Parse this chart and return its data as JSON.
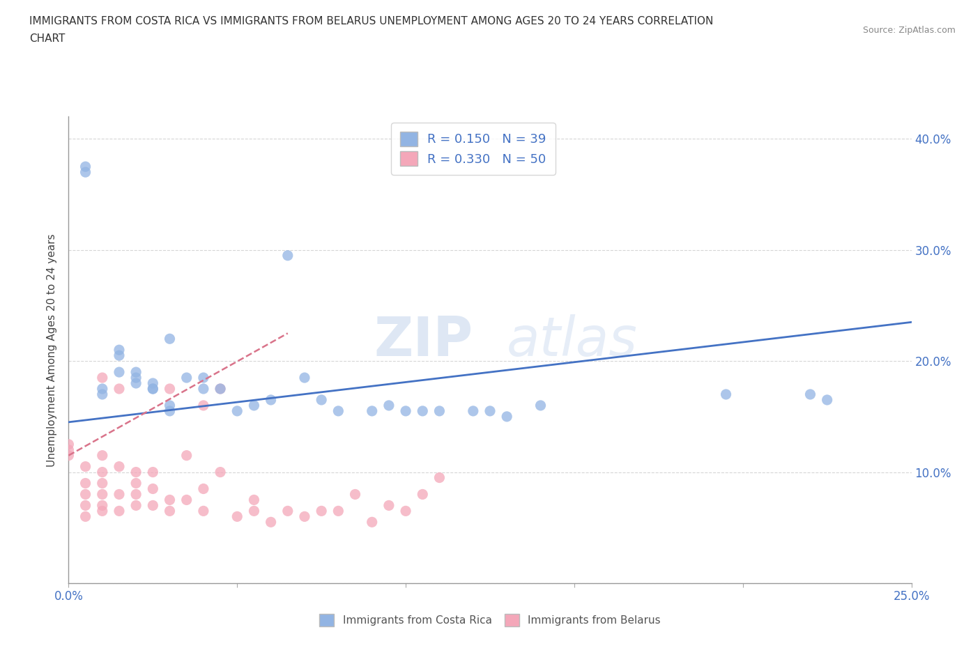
{
  "title_line1": "IMMIGRANTS FROM COSTA RICA VS IMMIGRANTS FROM BELARUS UNEMPLOYMENT AMONG AGES 20 TO 24 YEARS CORRELATION",
  "title_line2": "CHART",
  "source_text": "Source: ZipAtlas.com",
  "ylabel": "Unemployment Among Ages 20 to 24 years",
  "xlim": [
    0.0,
    0.25
  ],
  "ylim": [
    0.0,
    0.42
  ],
  "xticks": [
    0.0,
    0.05,
    0.1,
    0.15,
    0.2,
    0.25
  ],
  "yticks": [
    0.0,
    0.1,
    0.2,
    0.3,
    0.4
  ],
  "xticklabels": [
    "0.0%",
    "",
    "",
    "",
    "",
    "25.0%"
  ],
  "yticklabels": [
    "",
    "10.0%",
    "20.0%",
    "30.0%",
    "40.0%"
  ],
  "costa_rica_color": "#92b4e3",
  "belarus_color": "#f4a7b9",
  "costa_rica_line_color": "#4472c4",
  "belarus_line_color": "#d9738a",
  "legend_costa_rica": "R = 0.150   N = 39",
  "legend_belarus": "R = 0.330   N = 50",
  "watermark": "ZIPatlas",
  "costa_rica_scatter_x": [
    0.005,
    0.005,
    0.01,
    0.01,
    0.015,
    0.015,
    0.015,
    0.02,
    0.02,
    0.02,
    0.025,
    0.025,
    0.025,
    0.03,
    0.03,
    0.03,
    0.035,
    0.04,
    0.04,
    0.045,
    0.05,
    0.055,
    0.06,
    0.065,
    0.07,
    0.075,
    0.08,
    0.09,
    0.095,
    0.1,
    0.105,
    0.11,
    0.12,
    0.125,
    0.13,
    0.14,
    0.195,
    0.22,
    0.225
  ],
  "costa_rica_scatter_y": [
    0.37,
    0.375,
    0.17,
    0.175,
    0.19,
    0.205,
    0.21,
    0.18,
    0.185,
    0.19,
    0.175,
    0.175,
    0.18,
    0.155,
    0.16,
    0.22,
    0.185,
    0.175,
    0.185,
    0.175,
    0.155,
    0.16,
    0.165,
    0.295,
    0.185,
    0.165,
    0.155,
    0.155,
    0.16,
    0.155,
    0.155,
    0.155,
    0.155,
    0.155,
    0.15,
    0.16,
    0.17,
    0.17,
    0.165
  ],
  "belarus_scatter_x": [
    0.0,
    0.0,
    0.0,
    0.005,
    0.005,
    0.005,
    0.005,
    0.005,
    0.01,
    0.01,
    0.01,
    0.01,
    0.01,
    0.01,
    0.01,
    0.015,
    0.015,
    0.015,
    0.015,
    0.02,
    0.02,
    0.02,
    0.02,
    0.025,
    0.025,
    0.025,
    0.03,
    0.03,
    0.03,
    0.035,
    0.035,
    0.04,
    0.04,
    0.04,
    0.045,
    0.045,
    0.05,
    0.055,
    0.055,
    0.06,
    0.065,
    0.07,
    0.075,
    0.08,
    0.085,
    0.09,
    0.095,
    0.1,
    0.105,
    0.11
  ],
  "belarus_scatter_y": [
    0.115,
    0.12,
    0.125,
    0.06,
    0.07,
    0.08,
    0.09,
    0.105,
    0.065,
    0.07,
    0.08,
    0.09,
    0.1,
    0.115,
    0.185,
    0.065,
    0.08,
    0.105,
    0.175,
    0.07,
    0.08,
    0.09,
    0.1,
    0.07,
    0.085,
    0.1,
    0.065,
    0.075,
    0.175,
    0.075,
    0.115,
    0.065,
    0.085,
    0.16,
    0.1,
    0.175,
    0.06,
    0.065,
    0.075,
    0.055,
    0.065,
    0.06,
    0.065,
    0.065,
    0.08,
    0.055,
    0.07,
    0.065,
    0.08,
    0.095
  ],
  "costa_rica_trend_x": [
    0.0,
    0.25
  ],
  "costa_rica_trend_y": [
    0.145,
    0.235
  ],
  "belarus_trend_x": [
    0.0,
    0.065
  ],
  "belarus_trend_y": [
    0.115,
    0.225
  ]
}
